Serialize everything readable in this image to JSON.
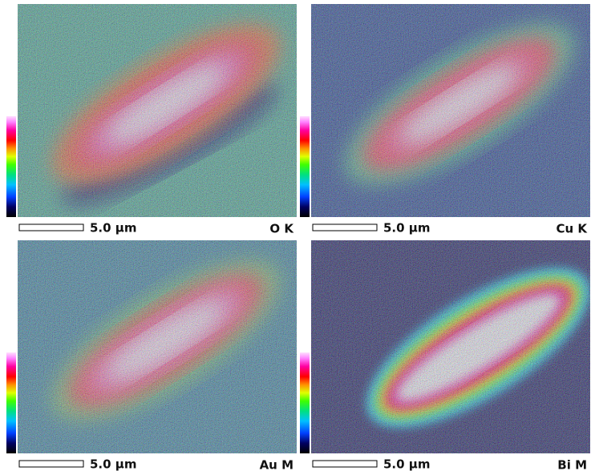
{
  "panels": [
    {
      "scale_label": "5.0 µm",
      "element": "O K"
    },
    {
      "scale_label": "5.0 µm",
      "element": "Cu K"
    },
    {
      "scale_label": "5.0 µm",
      "element": "Au M"
    },
    {
      "scale_label": "5.0 µm",
      "element": "Bi M"
    }
  ]
}
